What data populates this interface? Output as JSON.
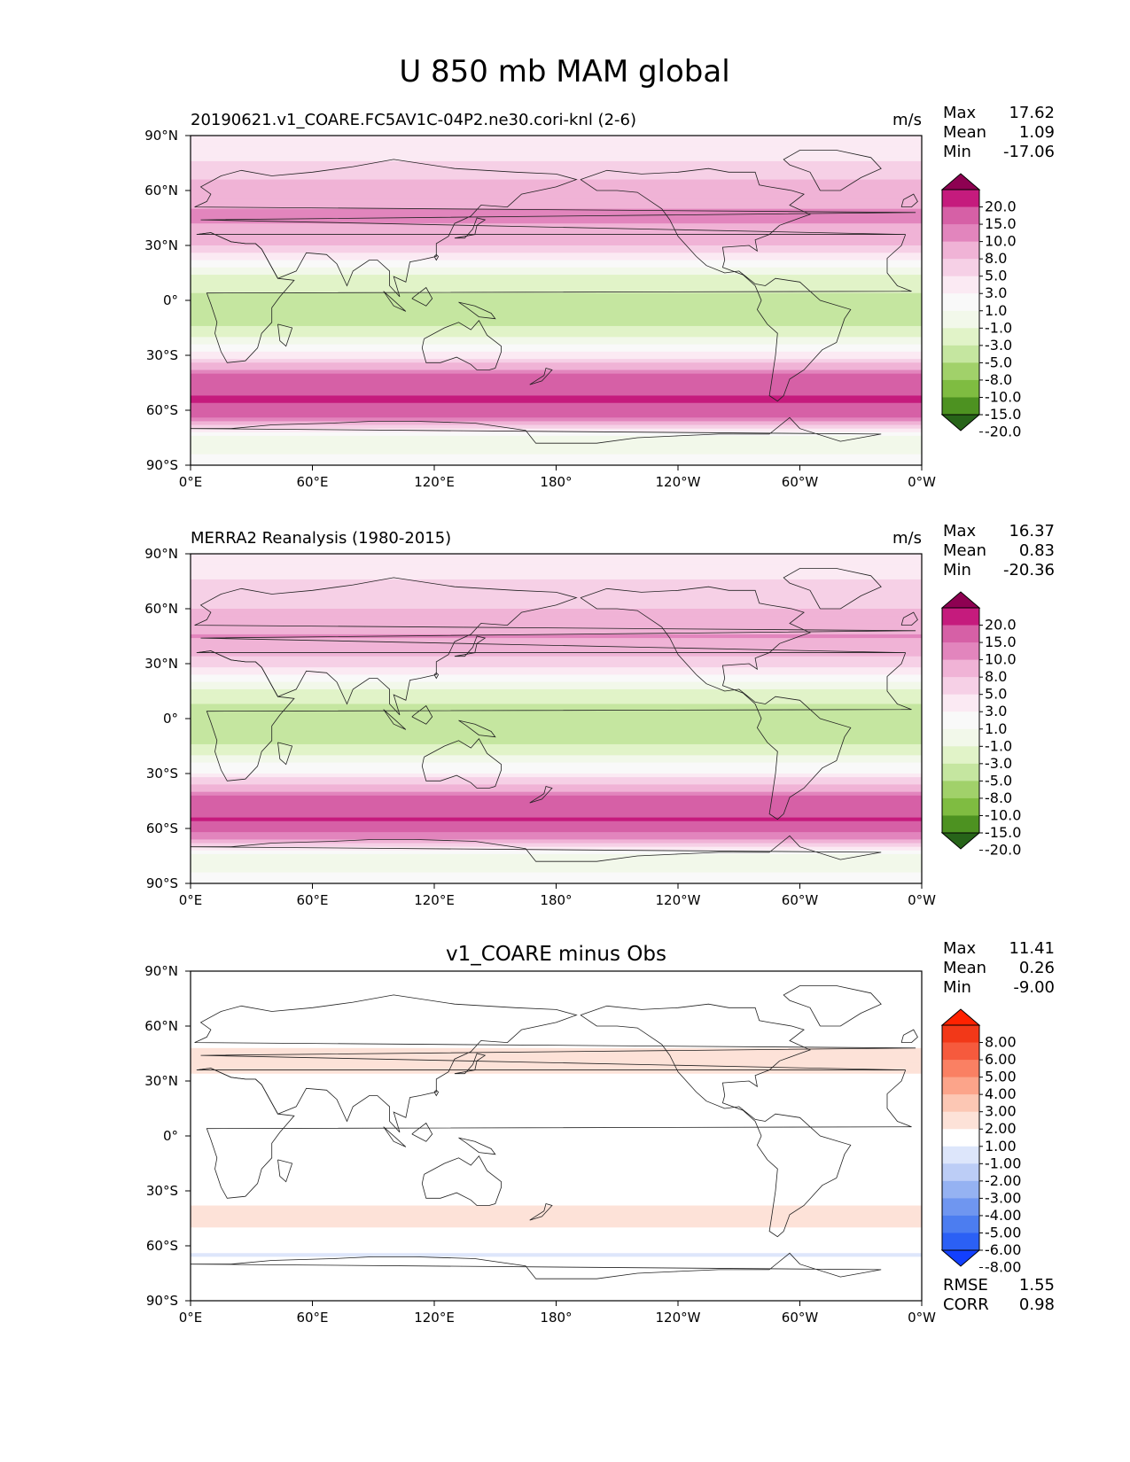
{
  "figure": {
    "title": "U 850 mb MAM global"
  },
  "colors": {
    "field": [
      "#276419",
      "#4d9221",
      "#7fbc41",
      "#a1d16a",
      "#c5e6a0",
      "#e1f3c8",
      "#f2f8ea",
      "#f9f9f9",
      "#fbeaf3",
      "#f6d0e6",
      "#f0b3d6",
      "#e285bd",
      "#d660a6",
      "#c51b7d",
      "#8e0152"
    ],
    "diff": [
      "#1240ff",
      "#2b60f5",
      "#4c7df0",
      "#6f96f0",
      "#95b2f2",
      "#bccdf6",
      "#dde6fb",
      "#ffffff",
      "#fde2d8",
      "#fcc7b4",
      "#fca48a",
      "#fa8063",
      "#f65a3d",
      "#f23818",
      "#ff2200"
    ]
  },
  "chart_data": [
    {
      "type": "heatmap",
      "id": "model",
      "title": "20190621.v1_COARE.FC5AV1C-04P2.ne30.cori-knl (2-6)",
      "units": "m/s",
      "stats": [
        {
          "label": "Max",
          "value": "17.62"
        },
        {
          "label": "Mean",
          "value": "1.09"
        },
        {
          "label": "Min",
          "value": "-17.06"
        }
      ],
      "colorbar": {
        "levels": [
          "20.0",
          "15.0",
          "10.0",
          "8.0",
          "5.0",
          "3.0",
          "1.0",
          "-1.0",
          "-3.0",
          "-5.0",
          "-8.0",
          "-10.0",
          "-15.0",
          "-20.0"
        ]
      },
      "xticks": [
        "0°E",
        "60°E",
        "120°E",
        "180°",
        "120°W",
        "60°W",
        "0°W"
      ],
      "yticks": [
        "90°N",
        "60°N",
        "30°N",
        "0°",
        "30°S",
        "60°S",
        "90°S"
      ],
      "xlim": [
        0,
        360
      ],
      "ylim": [
        -90,
        90
      ],
      "zonal_profile": [
        {
          "lat": 90,
          "value": 1
        },
        {
          "lat": 75,
          "value": 3
        },
        {
          "lat": 60,
          "value": 6
        },
        {
          "lat": 45,
          "value": 9
        },
        {
          "lat": 30,
          "value": 5
        },
        {
          "lat": 15,
          "value": -3
        },
        {
          "lat": 0,
          "value": -6
        },
        {
          "lat": -15,
          "value": -5
        },
        {
          "lat": -30,
          "value": 2
        },
        {
          "lat": -45,
          "value": 13
        },
        {
          "lat": -55,
          "value": 16
        },
        {
          "lat": -65,
          "value": 9
        },
        {
          "lat": -75,
          "value": -3
        },
        {
          "lat": -90,
          "value": 0
        }
      ]
    },
    {
      "type": "heatmap",
      "id": "obs",
      "title": "MERRA2 Reanalysis (1980-2015)",
      "units": "m/s",
      "stats": [
        {
          "label": "Max",
          "value": "16.37"
        },
        {
          "label": "Mean",
          "value": "0.83"
        },
        {
          "label": "Min",
          "value": "-20.36"
        }
      ],
      "colorbar": {
        "levels": [
          "20.0",
          "15.0",
          "10.0",
          "8.0",
          "5.0",
          "3.0",
          "1.0",
          "-1.0",
          "-3.0",
          "-5.0",
          "-8.0",
          "-10.0",
          "-15.0",
          "-20.0"
        ]
      },
      "xticks": [
        "0°E",
        "60°E",
        "120°E",
        "180°",
        "120°W",
        "60°W",
        "0°W"
      ],
      "yticks": [
        "90°N",
        "60°N",
        "30°N",
        "0°",
        "30°S",
        "60°S",
        "90°S"
      ],
      "xlim": [
        0,
        360
      ],
      "ylim": [
        -90,
        90
      ],
      "zonal_profile": [
        {
          "lat": 90,
          "value": 1
        },
        {
          "lat": 75,
          "value": 3
        },
        {
          "lat": 60,
          "value": 5
        },
        {
          "lat": 45,
          "value": 8
        },
        {
          "lat": 30,
          "value": 4
        },
        {
          "lat": 15,
          "value": -4
        },
        {
          "lat": 0,
          "value": -6
        },
        {
          "lat": -15,
          "value": -5
        },
        {
          "lat": -30,
          "value": 1
        },
        {
          "lat": -45,
          "value": 12
        },
        {
          "lat": -55,
          "value": 15
        },
        {
          "lat": -65,
          "value": 8
        },
        {
          "lat": -75,
          "value": -3
        },
        {
          "lat": -90,
          "value": 0
        }
      ]
    },
    {
      "type": "heatmap",
      "id": "diff",
      "title": "v1_COARE minus Obs",
      "units": "",
      "stats": [
        {
          "label": "Max",
          "value": "11.41"
        },
        {
          "label": "Mean",
          "value": "0.26"
        },
        {
          "label": "Min",
          "value": "-9.00"
        }
      ],
      "colorbar": {
        "levels": [
          "8.00",
          "6.00",
          "5.00",
          "4.00",
          "3.00",
          "2.00",
          "1.00",
          "-1.00",
          "-2.00",
          "-3.00",
          "-4.00",
          "-5.00",
          "-6.00",
          "-8.00"
        ]
      },
      "extra_stats": [
        {
          "label": "RMSE",
          "value": "1.55"
        },
        {
          "label": "CORR",
          "value": "0.98"
        }
      ],
      "xticks": [
        "0°E",
        "60°E",
        "120°E",
        "180°",
        "120°W",
        "60°W",
        "0°W"
      ],
      "yticks": [
        "90°N",
        "60°N",
        "30°N",
        "0°",
        "30°S",
        "60°S",
        "90°S"
      ],
      "xlim": [
        0,
        360
      ],
      "ylim": [
        -90,
        90
      ],
      "zonal_profile": [
        {
          "lat": 90,
          "value": 0
        },
        {
          "lat": 75,
          "value": 0.5
        },
        {
          "lat": 60,
          "value": -0.5
        },
        {
          "lat": 45,
          "value": 1.5
        },
        {
          "lat": 30,
          "value": 0.8
        },
        {
          "lat": 15,
          "value": 0
        },
        {
          "lat": 0,
          "value": -0.6
        },
        {
          "lat": -15,
          "value": 0.3
        },
        {
          "lat": -30,
          "value": 0.4
        },
        {
          "lat": -45,
          "value": 1.5
        },
        {
          "lat": -55,
          "value": 0.6
        },
        {
          "lat": -65,
          "value": -1.2
        },
        {
          "lat": -75,
          "value": 0
        },
        {
          "lat": -90,
          "value": 0
        }
      ]
    }
  ]
}
